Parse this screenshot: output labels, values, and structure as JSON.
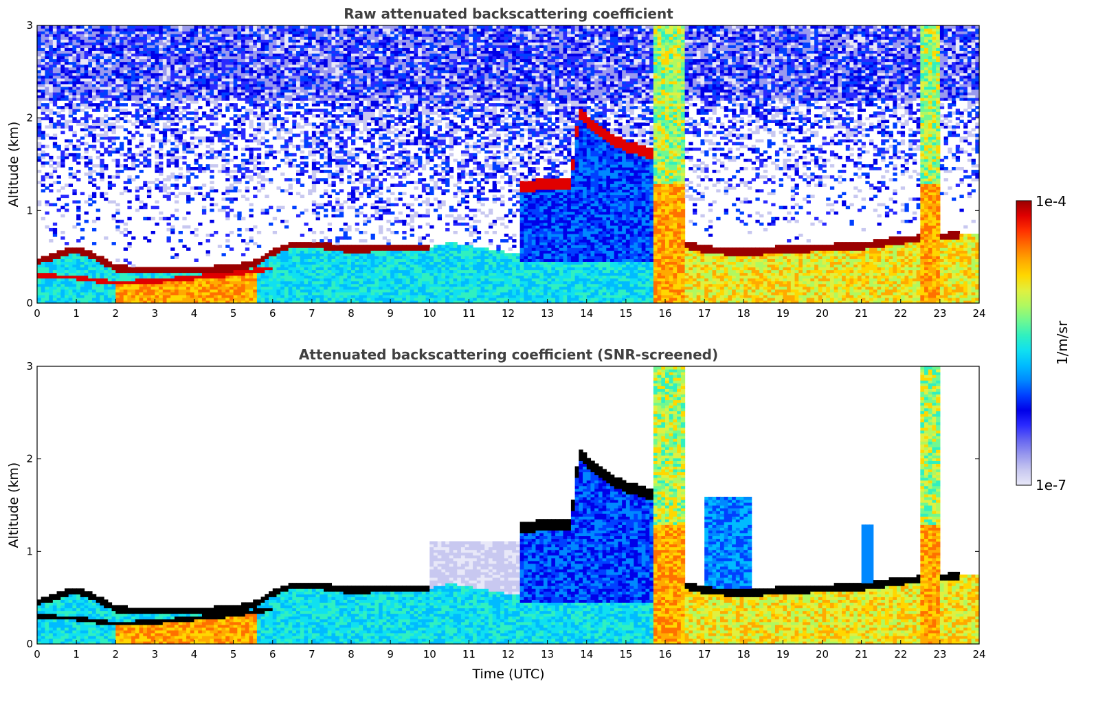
{
  "chart_data": [
    {
      "type": "heatmap",
      "title": "Raw attenuated backscattering coefficient",
      "xlabel": "",
      "ylabel": "Altitude (km)",
      "xlim": [
        0,
        24
      ],
      "ylim": [
        0,
        3
      ],
      "xticks": [
        "0",
        "1",
        "2",
        "3",
        "4",
        "5",
        "6",
        "7",
        "8",
        "9",
        "10",
        "11",
        "12",
        "13",
        "14",
        "15",
        "16",
        "17",
        "18",
        "19",
        "20",
        "21",
        "22",
        "23",
        "24"
      ],
      "yticks": [
        "0",
        "1",
        "2",
        "3"
      ],
      "screened": false
    },
    {
      "type": "heatmap",
      "title": "Attenuated backscattering coefficient (SNR-screened)",
      "xlabel": "Time (UTC)",
      "ylabel": "Altitude (km)",
      "xlim": [
        0,
        24
      ],
      "ylim": [
        0,
        3
      ],
      "xticks": [
        "0",
        "1",
        "2",
        "3",
        "4",
        "5",
        "6",
        "7",
        "8",
        "9",
        "10",
        "11",
        "12",
        "13",
        "14",
        "15",
        "16",
        "17",
        "18",
        "19",
        "20",
        "21",
        "22",
        "23",
        "24"
      ],
      "yticks": [
        "0",
        "1",
        "2",
        "3"
      ],
      "screened": true
    }
  ],
  "colorbar": {
    "label": "1/m/sr",
    "max_label": "1e-4",
    "min_label": "1e-7",
    "colors": [
      "#e8e8f8",
      "#c8c8f0",
      "#9a9aee",
      "#6666f0",
      "#2a2aff",
      "#0000e8",
      "#0040ff",
      "#0088ff",
      "#00bbff",
      "#10e0f0",
      "#30f0c0",
      "#70f890",
      "#b0f860",
      "#e0f040",
      "#ffd700",
      "#ffaa00",
      "#ff7000",
      "#ff3000",
      "#e00000",
      "#9a0000"
    ]
  }
}
